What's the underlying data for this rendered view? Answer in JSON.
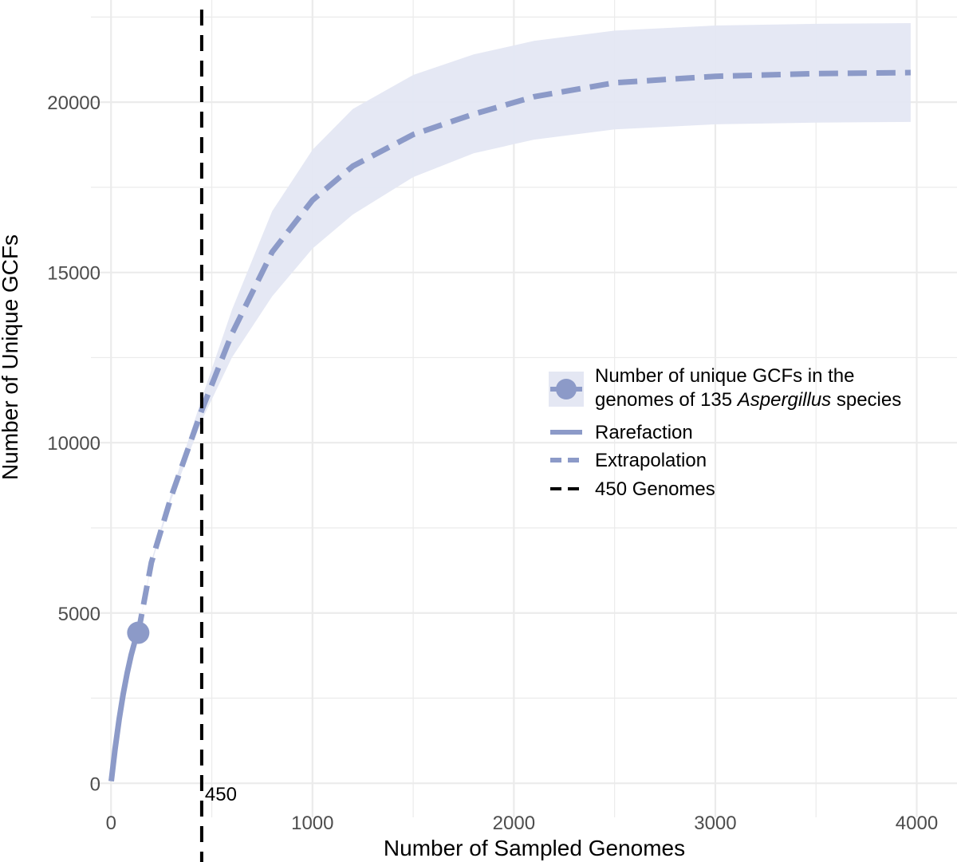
{
  "chart_data": {
    "type": "line",
    "xlabel": "Number of Sampled Genomes",
    "ylabel": "Number of Unique GCFs",
    "xlim": [
      -100,
      4200
    ],
    "ylim": [
      -1000,
      23000
    ],
    "x_ticks": [
      0,
      1000,
      2000,
      3000,
      4000
    ],
    "x_tick_labels": [
      "0",
      "1000",
      "2000",
      "3000",
      "4000"
    ],
    "y_ticks": [
      0,
      5000,
      10000,
      15000,
      20000
    ],
    "y_tick_labels": [
      "0",
      "5000",
      "10000",
      "15000",
      "20000"
    ],
    "grid": true,
    "legend_position": "right",
    "colors": {
      "series": "#8c9ac8",
      "ribbon": "#e4e7f3",
      "vline": "#000000",
      "grid": "#ebebeb"
    },
    "observed_point": {
      "x": 135,
      "y": 4420
    },
    "series": [
      {
        "name": "Rarefaction",
        "style": "solid",
        "points": [
          {
            "x": 1,
            "y": 60
          },
          {
            "x": 20,
            "y": 1010
          },
          {
            "x": 40,
            "y": 1880
          },
          {
            "x": 60,
            "y": 2610
          },
          {
            "x": 80,
            "y": 3240
          },
          {
            "x": 100,
            "y": 3770
          },
          {
            "x": 120,
            "y": 4210
          },
          {
            "x": 135,
            "y": 4420
          }
        ]
      },
      {
        "name": "Extrapolation",
        "style": "dashed",
        "points": [
          {
            "x": 135,
            "y": 4420
          },
          {
            "x": 200,
            "y": 6480
          },
          {
            "x": 300,
            "y": 8440
          },
          {
            "x": 450,
            "y": 10950
          },
          {
            "x": 600,
            "y": 13200
          },
          {
            "x": 800,
            "y": 15600
          },
          {
            "x": 1000,
            "y": 17120
          },
          {
            "x": 1200,
            "y": 18120
          },
          {
            "x": 1500,
            "y": 19050
          },
          {
            "x": 1800,
            "y": 19650
          },
          {
            "x": 2100,
            "y": 20160
          },
          {
            "x": 2500,
            "y": 20570
          },
          {
            "x": 3000,
            "y": 20760
          },
          {
            "x": 3500,
            "y": 20840
          },
          {
            "x": 3970,
            "y": 20870
          }
        ]
      }
    ],
    "confidence_band": {
      "x": [
        135,
        200,
        300,
        450,
        600,
        800,
        1000,
        1200,
        1500,
        1800,
        2100,
        2500,
        3000,
        3500,
        3970
      ],
      "lower": [
        4420,
        6420,
        8340,
        10650,
        12500,
        14300,
        15700,
        16700,
        17800,
        18500,
        18900,
        19200,
        19350,
        19400,
        19420
      ],
      "upper": [
        4420,
        6540,
        8540,
        11300,
        13900,
        16800,
        18600,
        19800,
        20800,
        21400,
        21800,
        22100,
        22250,
        22300,
        22320
      ]
    },
    "vline": {
      "x": 450,
      "label": "450",
      "name": "450 Genomes"
    },
    "legend": [
      {
        "key": "point",
        "lines": [
          [
            {
              "text": "Number of unique GCFs in the",
              "italic": false
            }
          ],
          [
            {
              "text": "genomes of 135 ",
              "italic": false
            },
            {
              "text": "Aspergillus",
              "italic": true
            },
            {
              "text": " species",
              "italic": false
            }
          ]
        ]
      },
      {
        "key": "rarefaction",
        "label": "Rarefaction"
      },
      {
        "key": "extrapolation",
        "label": "Extrapolation"
      },
      {
        "key": "vline",
        "label": "450 Genomes"
      }
    ]
  }
}
